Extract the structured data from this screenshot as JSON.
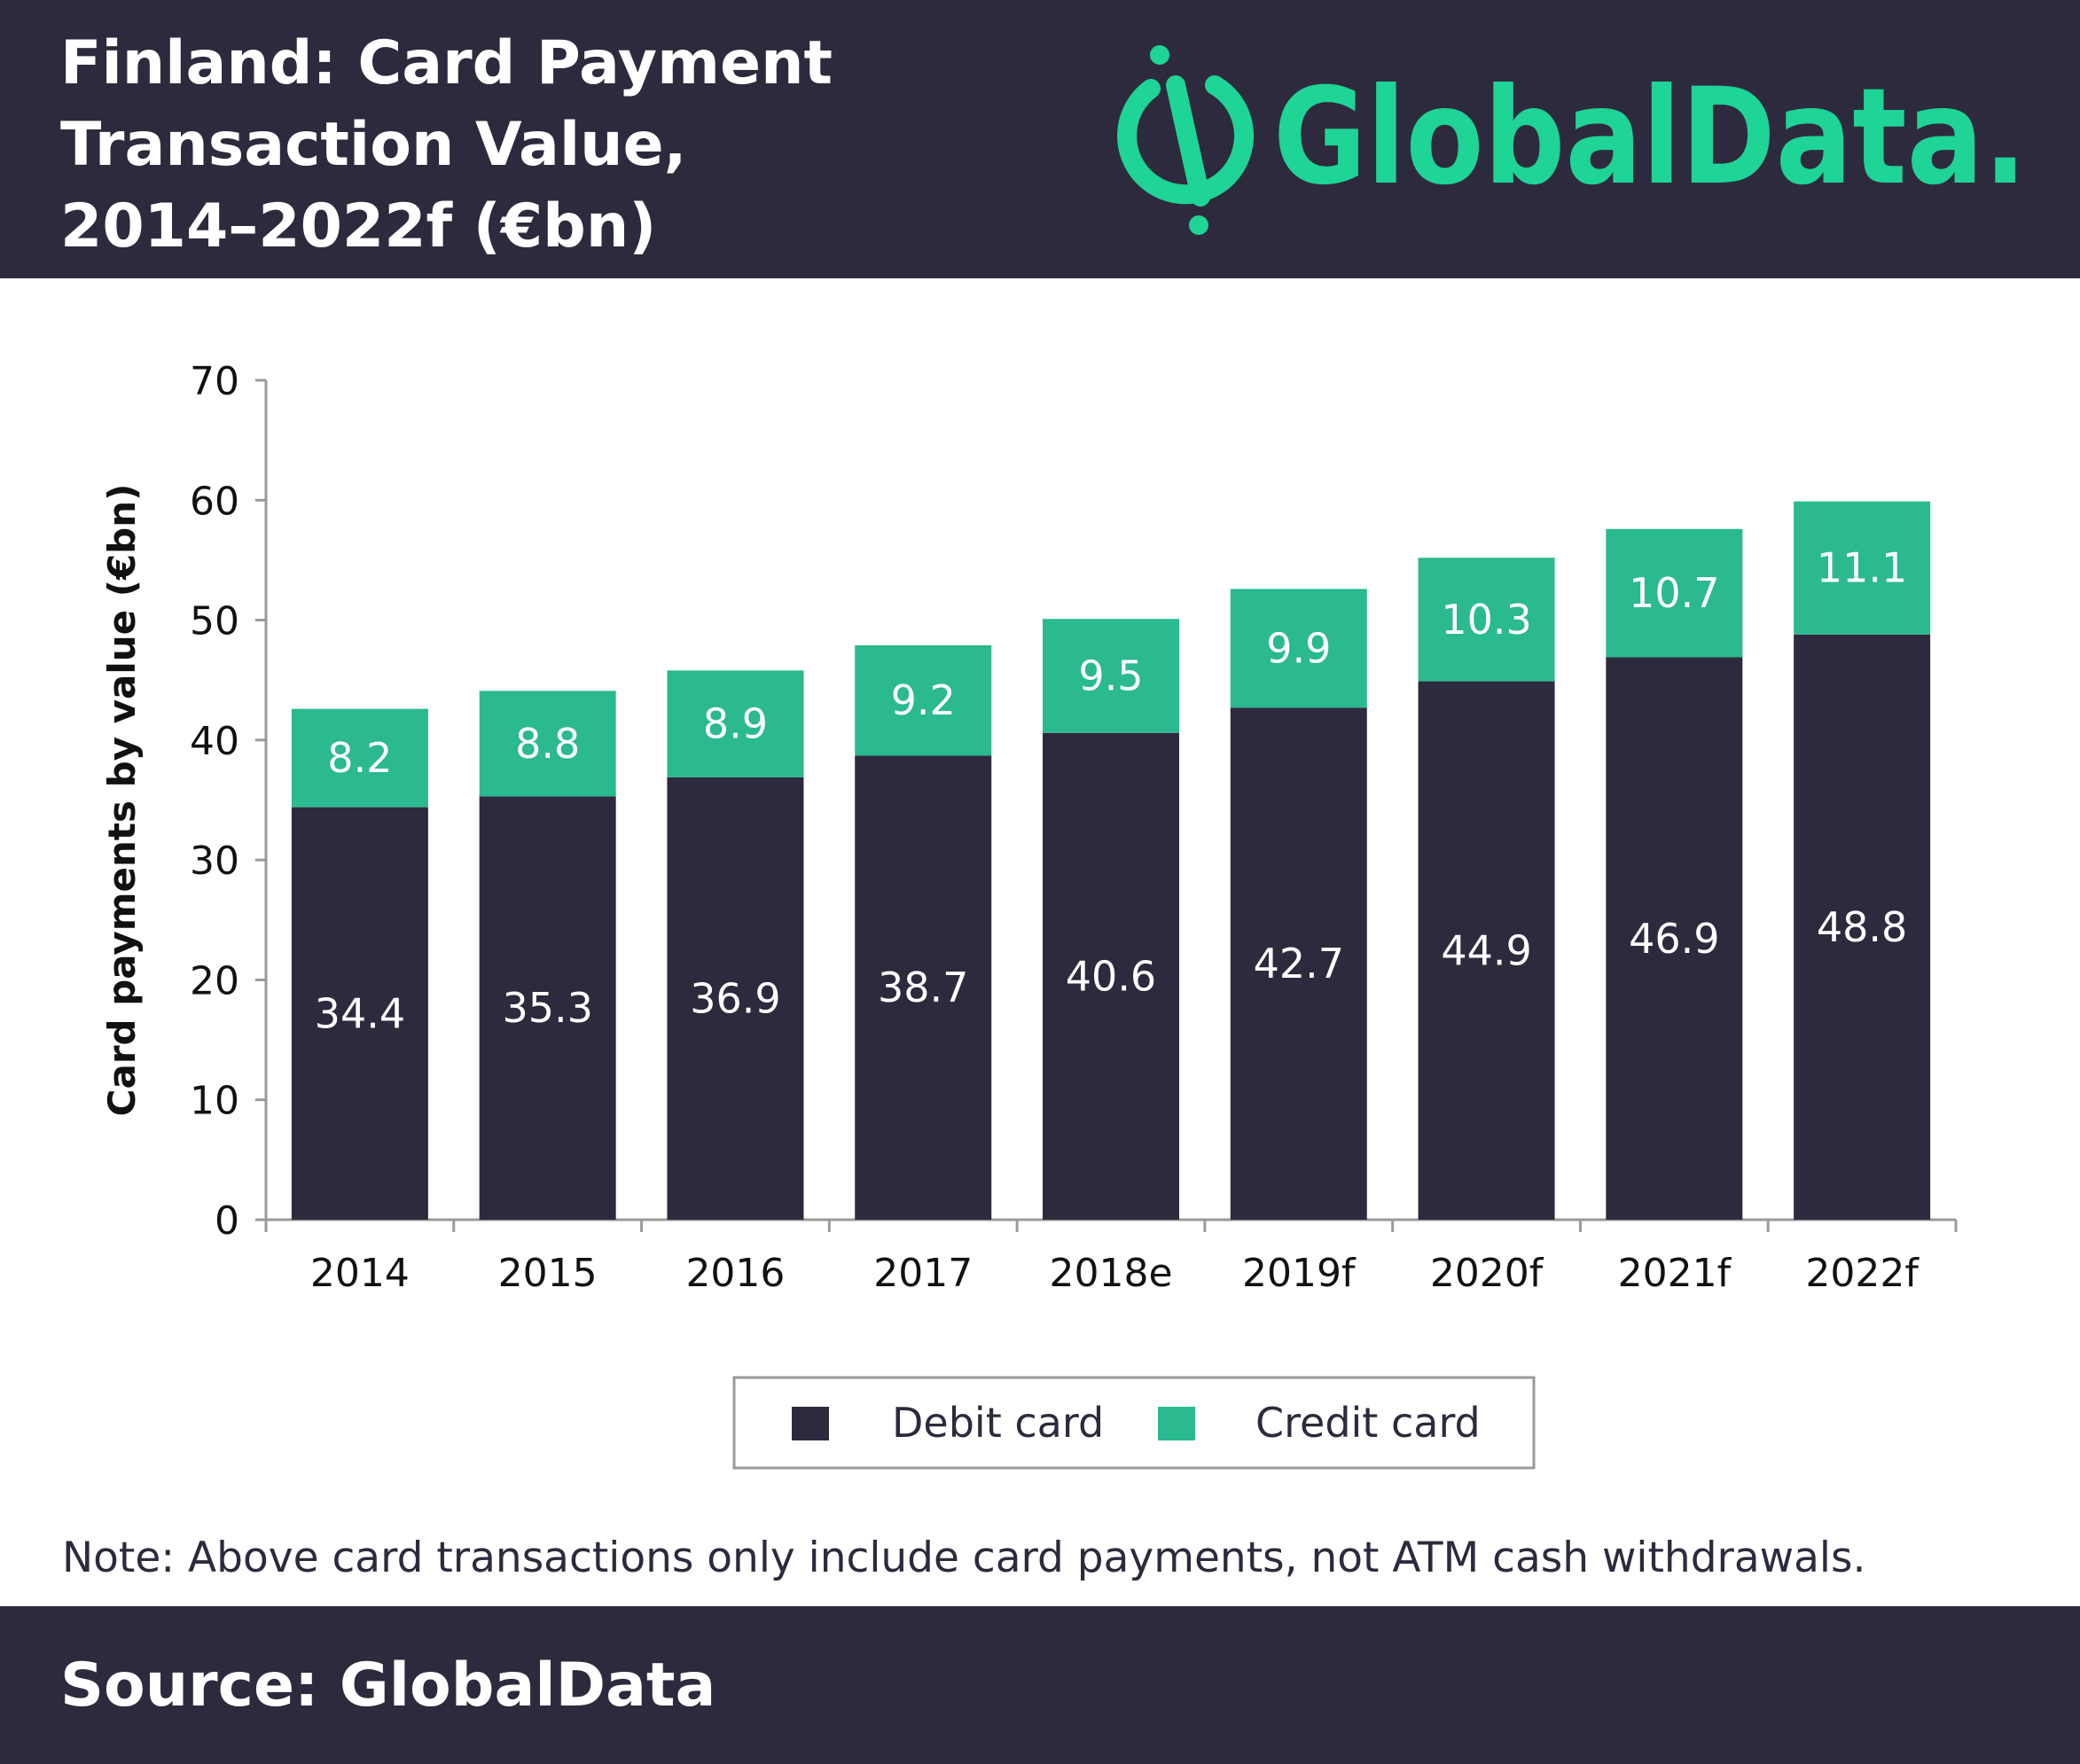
{
  "header": {
    "title_lines": [
      "Finland: Card Payment",
      "Transaction Value,",
      "2014–2022f (€bn)"
    ],
    "logo_text": "GlobalData."
  },
  "colors": {
    "header_bg": "#2e2a3d",
    "debit": "#2e2a3d",
    "credit": "#2bb98f",
    "brand": "#1ed496"
  },
  "chart_data": {
    "type": "bar",
    "stacked": true,
    "categories": [
      "2014",
      "2015",
      "2016",
      "2017",
      "2018e",
      "2019f",
      "2020f",
      "2021f",
      "2022f"
    ],
    "series": [
      {
        "name": "Debit card",
        "values": [
          34.4,
          35.3,
          36.9,
          38.7,
          40.6,
          42.7,
          44.9,
          46.9,
          48.8
        ]
      },
      {
        "name": "Credit card",
        "values": [
          8.2,
          8.8,
          8.9,
          9.2,
          9.5,
          9.9,
          10.3,
          10.7,
          11.1
        ]
      }
    ],
    "ylabel": "Card payments by value (€bn)",
    "ylim": [
      0,
      70
    ],
    "yticks": [
      0,
      10,
      20,
      30,
      40,
      50,
      60,
      70
    ],
    "legend_position": "bottom-center",
    "grid": false
  },
  "note": "Note: Above card transactions only include card payments, not ATM cash withdrawals.",
  "footer": {
    "source": "Source: GlobalData"
  }
}
